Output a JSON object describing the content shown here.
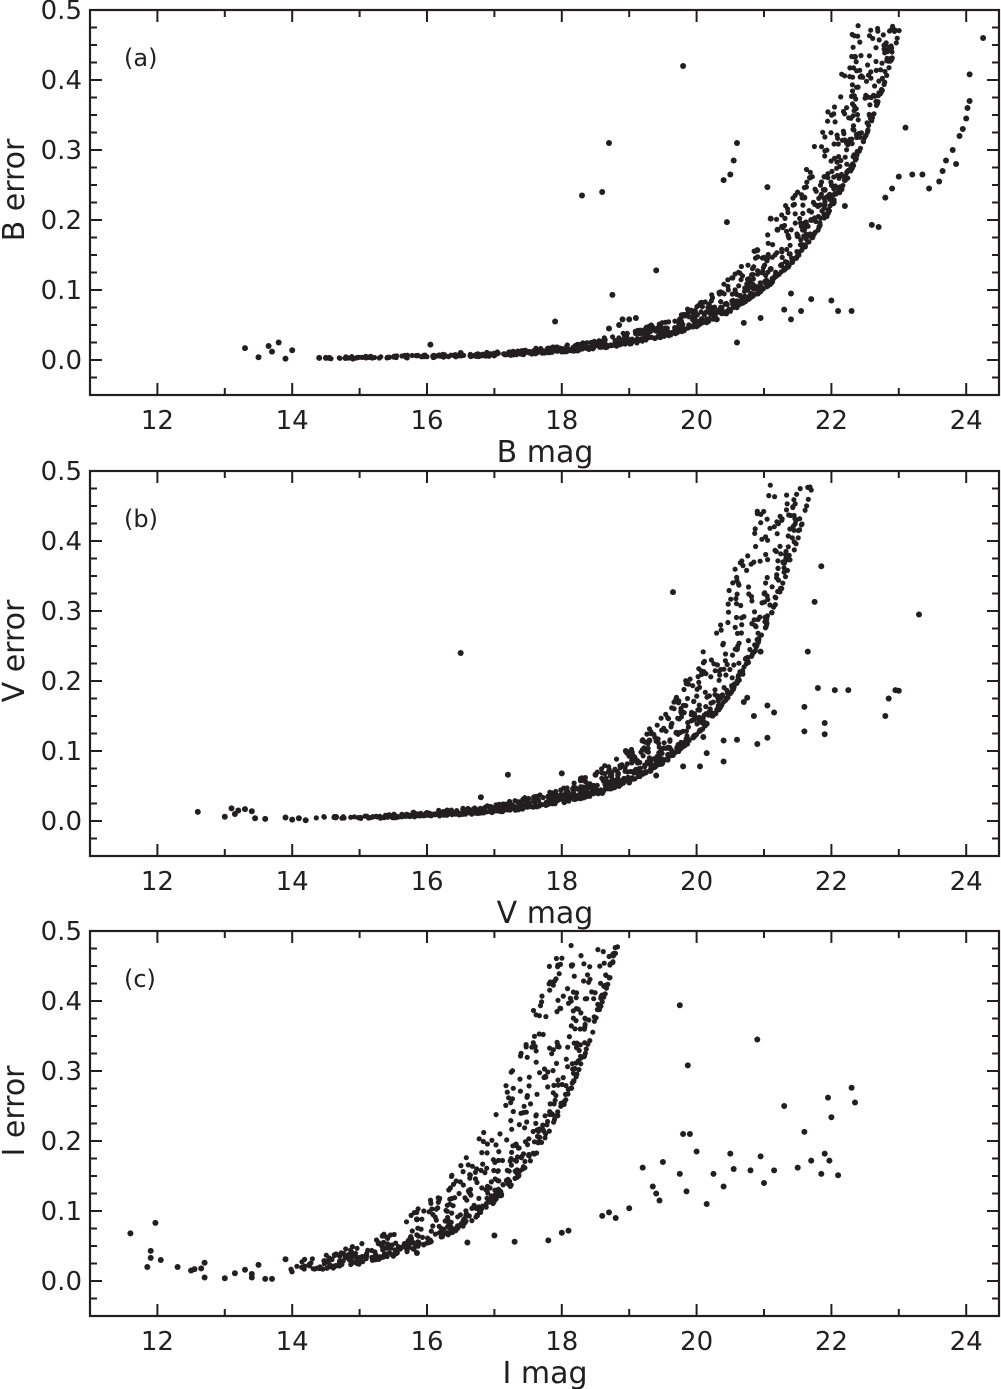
{
  "chart_data": [
    {
      "type": "scatter",
      "panel": "(a)",
      "title": "",
      "xlabel": "B mag",
      "ylabel": "B error",
      "xlim": [
        11.0,
        24.5
      ],
      "ylim": [
        -0.05,
        0.5
      ],
      "xticks": [
        12,
        14,
        16,
        18,
        20,
        22,
        24
      ],
      "xtick_labels": [
        "12",
        "14",
        "16",
        "18",
        "20",
        "22",
        "24"
      ],
      "yticks": [
        0.0,
        0.1,
        0.2,
        0.3,
        0.4,
        0.5
      ],
      "ytick_labels": [
        "0.0",
        "0.1",
        "0.2",
        "0.3",
        "0.4",
        "0.5"
      ],
      "grid": false,
      "legend": null,
      "marker_color": "#231f20",
      "main_band": {
        "mag_start": 14.4,
        "mag_end": 24.05,
        "err_floor": 0.001,
        "scale": 4.5e-05,
        "slope": 0.385,
        "spread": 0.45,
        "n": 1400
      },
      "points": [
        [
          13.3,
          0.017
        ],
        [
          13.5,
          0.004
        ],
        [
          13.65,
          0.02
        ],
        [
          13.7,
          0.012
        ],
        [
          13.8,
          0.025
        ],
        [
          13.9,
          0.002
        ],
        [
          14.0,
          0.014
        ],
        [
          14.4,
          0.003
        ],
        [
          14.5,
          0.003
        ],
        [
          14.55,
          0.003
        ],
        [
          14.8,
          0.003
        ],
        [
          14.9,
          0.002
        ],
        [
          16.05,
          0.022
        ],
        [
          16.1,
          0.006
        ],
        [
          16.5,
          0.01
        ],
        [
          16.8,
          0.007
        ],
        [
          17.7,
          0.012
        ],
        [
          17.9,
          0.055
        ],
        [
          18.2,
          0.02
        ],
        [
          18.3,
          0.235
        ],
        [
          18.6,
          0.24
        ],
        [
          18.7,
          0.31
        ],
        [
          18.75,
          0.093
        ],
        [
          18.7,
          0.045
        ],
        [
          18.85,
          0.05
        ],
        [
          18.9,
          0.058
        ],
        [
          19.0,
          0.058
        ],
        [
          19.1,
          0.06
        ],
        [
          19.1,
          0.038
        ],
        [
          19.4,
          0.128
        ],
        [
          19.8,
          0.42
        ],
        [
          19.95,
          0.058
        ],
        [
          20.15,
          0.058
        ],
        [
          20.3,
          0.058
        ],
        [
          20.4,
          0.068
        ],
        [
          20.4,
          0.257
        ],
        [
          20.45,
          0.197
        ],
        [
          20.5,
          0.265
        ],
        [
          20.55,
          0.285
        ],
        [
          20.6,
          0.31
        ],
        [
          20.6,
          0.025
        ],
        [
          20.7,
          0.053
        ],
        [
          20.9,
          0.157
        ],
        [
          20.95,
          0.06
        ],
        [
          21.0,
          0.146
        ],
        [
          21.05,
          0.247
        ],
        [
          21.1,
          0.202
        ],
        [
          21.1,
          0.13
        ],
        [
          21.2,
          0.186
        ],
        [
          21.3,
          0.072
        ],
        [
          21.4,
          0.095
        ],
        [
          21.4,
          0.058
        ],
        [
          21.5,
          0.177
        ],
        [
          21.55,
          0.07
        ],
        [
          21.6,
          0.232
        ],
        [
          21.7,
          0.087
        ],
        [
          21.7,
          0.2
        ],
        [
          21.8,
          0.22
        ],
        [
          21.9,
          0.243
        ],
        [
          21.95,
          0.21
        ],
        [
          22.0,
          0.085
        ],
        [
          22.1,
          0.07
        ],
        [
          22.15,
          0.244
        ],
        [
          22.2,
          0.257
        ],
        [
          22.2,
          0.22
        ],
        [
          22.3,
          0.07
        ],
        [
          22.35,
          0.433
        ],
        [
          22.6,
          0.193
        ],
        [
          22.7,
          0.19
        ],
        [
          22.8,
          0.232
        ],
        [
          22.9,
          0.245
        ],
        [
          23.0,
          0.262
        ],
        [
          23.1,
          0.332
        ],
        [
          23.2,
          0.265
        ],
        [
          23.35,
          0.265
        ],
        [
          23.45,
          0.245
        ],
        [
          23.6,
          0.255
        ],
        [
          23.65,
          0.27
        ],
        [
          23.7,
          0.285
        ],
        [
          23.8,
          0.3
        ],
        [
          23.85,
          0.28
        ],
        [
          23.9,
          0.32
        ],
        [
          23.95,
          0.33
        ],
        [
          24.0,
          0.345
        ],
        [
          24.02,
          0.36
        ],
        [
          24.05,
          0.37
        ],
        [
          24.05,
          0.408
        ],
        [
          24.25,
          0.46
        ]
      ]
    },
    {
      "type": "scatter",
      "panel": "(b)",
      "title": "",
      "xlabel": "V mag",
      "ylabel": "V error",
      "xlim": [
        11.0,
        24.5
      ],
      "ylim": [
        -0.05,
        0.5
      ],
      "xticks": [
        12,
        14,
        16,
        18,
        20,
        22,
        24
      ],
      "xtick_labels": [
        "12",
        "14",
        "16",
        "18",
        "20",
        "22",
        "24"
      ],
      "yticks": [
        0.0,
        0.1,
        0.2,
        0.3,
        0.4,
        0.5
      ],
      "ytick_labels": [
        "0.0",
        "0.1",
        "0.2",
        "0.3",
        "0.4",
        "0.5"
      ],
      "grid": false,
      "legend": null,
      "marker_color": "#231f20",
      "main_band": {
        "mag_start": 14.3,
        "mag_end": 22.9,
        "err_floor": 0.001,
        "scale": 9e-05,
        "slope": 0.4,
        "spread": 0.55,
        "n": 1400
      },
      "points": [
        [
          12.6,
          0.013
        ],
        [
          13.0,
          0.006
        ],
        [
          13.1,
          0.018
        ],
        [
          13.15,
          0.01
        ],
        [
          13.2,
          0.015
        ],
        [
          13.3,
          0.017
        ],
        [
          13.4,
          0.014
        ],
        [
          13.45,
          0.004
        ],
        [
          13.6,
          0.003
        ],
        [
          13.9,
          0.005
        ],
        [
          14.0,
          0.002
        ],
        [
          14.1,
          0.004
        ],
        [
          14.2,
          0.001
        ],
        [
          15.8,
          0.012
        ],
        [
          16.3,
          0.015
        ],
        [
          16.5,
          0.24
        ],
        [
          16.7,
          0.012
        ],
        [
          16.8,
          0.034
        ],
        [
          17.0,
          0.018
        ],
        [
          17.2,
          0.066
        ],
        [
          17.4,
          0.026
        ],
        [
          17.8,
          0.035
        ],
        [
          18.0,
          0.068
        ],
        [
          18.2,
          0.047
        ],
        [
          18.3,
          0.061
        ],
        [
          18.5,
          0.066
        ],
        [
          18.6,
          0.04
        ],
        [
          18.95,
          0.1
        ],
        [
          19.0,
          0.055
        ],
        [
          19.3,
          0.115
        ],
        [
          19.4,
          0.065
        ],
        [
          19.5,
          0.086
        ],
        [
          19.65,
          0.327
        ],
        [
          19.7,
          0.126
        ],
        [
          19.8,
          0.078
        ],
        [
          20.05,
          0.078
        ],
        [
          20.1,
          0.12
        ],
        [
          20.15,
          0.139
        ],
        [
          20.15,
          0.097
        ],
        [
          20.4,
          0.115
        ],
        [
          20.4,
          0.085
        ],
        [
          20.6,
          0.116
        ],
        [
          20.7,
          0.17
        ],
        [
          20.75,
          0.176
        ],
        [
          20.85,
          0.15
        ],
        [
          20.9,
          0.11
        ],
        [
          20.95,
          0.242
        ],
        [
          21.05,
          0.165
        ],
        [
          21.05,
          0.119
        ],
        [
          21.15,
          0.155
        ],
        [
          21.6,
          0.163
        ],
        [
          21.6,
          0.128
        ],
        [
          21.65,
          0.242
        ],
        [
          21.75,
          0.313
        ],
        [
          21.8,
          0.19
        ],
        [
          21.85,
          0.364
        ],
        [
          21.9,
          0.14
        ],
        [
          21.9,
          0.124
        ],
        [
          22.05,
          0.187
        ],
        [
          22.25,
          0.187
        ],
        [
          22.8,
          0.15
        ],
        [
          22.85,
          0.175
        ],
        [
          22.95,
          0.187
        ],
        [
          23.0,
          0.186
        ],
        [
          23.3,
          0.295
        ]
      ]
    },
    {
      "type": "scatter",
      "panel": "(c)",
      "title": "",
      "xlabel": "I mag",
      "ylabel": "I error",
      "xlim": [
        11.0,
        24.5
      ],
      "ylim": [
        -0.05,
        0.5
      ],
      "xticks": [
        12,
        14,
        16,
        18,
        20,
        22,
        24
      ],
      "xtick_labels": [
        "12",
        "14",
        "16",
        "18",
        "20",
        "22",
        "24"
      ],
      "yticks": [
        0.0,
        0.1,
        0.2,
        0.3,
        0.4,
        0.5
      ],
      "ytick_labels": [
        "0.0",
        "0.1",
        "0.2",
        "0.3",
        "0.4",
        "0.5"
      ],
      "grid": false,
      "legend": null,
      "marker_color": "#231f20",
      "main_band": {
        "mag_start": 13.85,
        "mag_end": 21.85,
        "err_floor": 0.002,
        "scale": 0.0009,
        "slope": 0.4,
        "spread": 0.75,
        "n": 1700
      },
      "points": [
        [
          11.6,
          0.068
        ],
        [
          11.85,
          0.02
        ],
        [
          11.9,
          0.033
        ],
        [
          11.9,
          0.043
        ],
        [
          11.97,
          0.083
        ],
        [
          12.05,
          0.03
        ],
        [
          12.3,
          0.02
        ],
        [
          12.5,
          0.015
        ],
        [
          12.55,
          0.017
        ],
        [
          12.65,
          0.018
        ],
        [
          12.7,
          0.026
        ],
        [
          12.7,
          0.005
        ],
        [
          13.0,
          0.004
        ],
        [
          13.15,
          0.011
        ],
        [
          13.3,
          0.016
        ],
        [
          13.4,
          0.01
        ],
        [
          13.4,
          0.005
        ],
        [
          13.5,
          0.023
        ],
        [
          13.6,
          0.003
        ],
        [
          13.7,
          0.003
        ],
        [
          13.9,
          0.031
        ],
        [
          14.5,
          0.028
        ],
        [
          14.65,
          0.038
        ],
        [
          15.1,
          0.036
        ],
        [
          15.3,
          0.034
        ],
        [
          15.6,
          0.046
        ],
        [
          15.85,
          0.088
        ],
        [
          15.85,
          0.04
        ],
        [
          16.6,
          0.055
        ],
        [
          17.0,
          0.065
        ],
        [
          17.3,
          0.056
        ],
        [
          17.65,
          0.198
        ],
        [
          17.8,
          0.058
        ],
        [
          18.0,
          0.069
        ],
        [
          18.1,
          0.072
        ],
        [
          18.6,
          0.093
        ],
        [
          18.7,
          0.098
        ],
        [
          18.8,
          0.09
        ],
        [
          19.0,
          0.104
        ],
        [
          19.2,
          0.162
        ],
        [
          19.35,
          0.135
        ],
        [
          19.4,
          0.125
        ],
        [
          19.45,
          0.115
        ],
        [
          19.5,
          0.17
        ],
        [
          19.75,
          0.153
        ],
        [
          19.75,
          0.394
        ],
        [
          19.8,
          0.21
        ],
        [
          19.85,
          0.128
        ],
        [
          19.87,
          0.308
        ],
        [
          19.9,
          0.21
        ],
        [
          20.0,
          0.185
        ],
        [
          20.15,
          0.11
        ],
        [
          20.25,
          0.153
        ],
        [
          20.4,
          0.135
        ],
        [
          20.5,
          0.182
        ],
        [
          20.55,
          0.16
        ],
        [
          20.8,
          0.158
        ],
        [
          20.9,
          0.345
        ],
        [
          20.95,
          0.178
        ],
        [
          21.0,
          0.14
        ],
        [
          21.15,
          0.158
        ],
        [
          21.3,
          0.25
        ],
        [
          21.5,
          0.162
        ],
        [
          21.6,
          0.213
        ],
        [
          21.7,
          0.172
        ],
        [
          21.85,
          0.153
        ],
        [
          21.9,
          0.182
        ],
        [
          21.95,
          0.262
        ],
        [
          21.97,
          0.172
        ],
        [
          22.0,
          0.234
        ],
        [
          22.1,
          0.151
        ],
        [
          22.3,
          0.276
        ],
        [
          22.35,
          0.255
        ]
      ]
    }
  ],
  "panels": [
    {
      "tag": "(a)",
      "xlabel": "B mag",
      "ylabel": "B error"
    },
    {
      "tag": "(b)",
      "xlabel": "V mag",
      "ylabel": "V error"
    },
    {
      "tag": "(c)",
      "xlabel": "I mag",
      "ylabel": "I error"
    }
  ]
}
